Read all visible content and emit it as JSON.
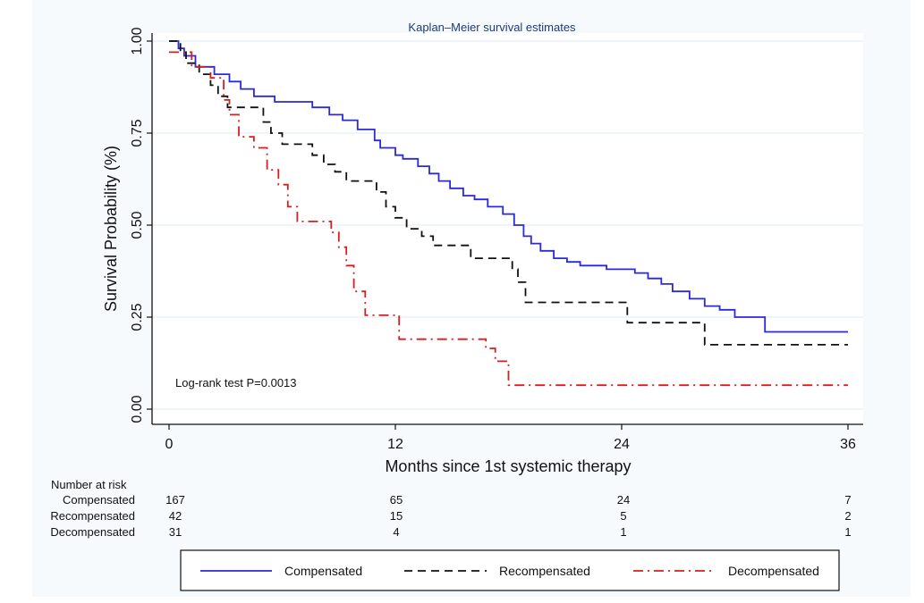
{
  "chart_data": {
    "type": "line",
    "subtype": "kaplan-meier",
    "title": "Kaplan–Meier survival estimates",
    "xlabel": "Months since 1st systemic therapy",
    "ylabel": "Survival Probability (%)",
    "xlim": [
      0,
      36
    ],
    "ylim": [
      0,
      1
    ],
    "xticks": [
      0,
      12,
      24,
      36
    ],
    "xtick_labels": [
      "0",
      "12",
      "24",
      "36"
    ],
    "yticks": [
      0,
      0.25,
      0.5,
      0.75,
      1.0
    ],
    "ytick_labels": [
      "0.00",
      "0.25",
      "0.50",
      "0.75",
      "1.00"
    ],
    "grid": "horizontal",
    "annotation": "Log-rank test P=0.0013",
    "legend_position": "bottom",
    "series": [
      {
        "name": "Compensated",
        "color": "#2a2ad8",
        "style": "solid",
        "steps": [
          [
            0,
            1.0
          ],
          [
            0.5,
            0.98
          ],
          [
            0.8,
            0.96
          ],
          [
            1.4,
            0.93
          ],
          [
            2.4,
            0.91
          ],
          [
            3.2,
            0.89
          ],
          [
            3.8,
            0.87
          ],
          [
            4.5,
            0.85
          ],
          [
            5.6,
            0.835
          ],
          [
            6.6,
            0.835
          ],
          [
            7.6,
            0.82
          ],
          [
            8.5,
            0.8
          ],
          [
            9.2,
            0.785
          ],
          [
            10,
            0.76
          ],
          [
            10.9,
            0.73
          ],
          [
            11.2,
            0.71
          ],
          [
            12,
            0.69
          ],
          [
            12.4,
            0.68
          ],
          [
            13.2,
            0.66
          ],
          [
            13.8,
            0.64
          ],
          [
            14.3,
            0.62
          ],
          [
            14.9,
            0.6
          ],
          [
            15.6,
            0.58
          ],
          [
            16.2,
            0.57
          ],
          [
            16.9,
            0.55
          ],
          [
            17.7,
            0.53
          ],
          [
            18.3,
            0.5
          ],
          [
            18.8,
            0.47
          ],
          [
            19.2,
            0.45
          ],
          [
            19.7,
            0.43
          ],
          [
            20.4,
            0.41
          ],
          [
            21.1,
            0.4
          ],
          [
            21.8,
            0.39
          ],
          [
            23.2,
            0.38
          ],
          [
            24.7,
            0.37
          ],
          [
            25.4,
            0.355
          ],
          [
            26.1,
            0.34
          ],
          [
            26.7,
            0.32
          ],
          [
            27.6,
            0.3
          ],
          [
            28.4,
            0.28
          ],
          [
            29.2,
            0.27
          ],
          [
            30.0,
            0.25
          ],
          [
            31.6,
            0.21
          ],
          [
            36,
            0.21
          ]
        ],
        "at_risk": [
          167,
          65,
          24,
          7
        ]
      },
      {
        "name": "Recompensated",
        "color": "#111111",
        "style": "dashed",
        "steps": [
          [
            0,
            1.0
          ],
          [
            0.6,
            0.97
          ],
          [
            0.9,
            0.94
          ],
          [
            1.6,
            0.91
          ],
          [
            2.2,
            0.88
          ],
          [
            2.6,
            0.85
          ],
          [
            3.1,
            0.82
          ],
          [
            5.0,
            0.78
          ],
          [
            5.4,
            0.75
          ],
          [
            6.0,
            0.72
          ],
          [
            7.6,
            0.69
          ],
          [
            8.2,
            0.665
          ],
          [
            8.8,
            0.645
          ],
          [
            9.4,
            0.62
          ],
          [
            11.0,
            0.59
          ],
          [
            11.5,
            0.55
          ],
          [
            12.0,
            0.52
          ],
          [
            12.6,
            0.49
          ],
          [
            13.4,
            0.47
          ],
          [
            14.0,
            0.445
          ],
          [
            15.4,
            0.445
          ],
          [
            16.0,
            0.41
          ],
          [
            18.2,
            0.38
          ],
          [
            18.5,
            0.345
          ],
          [
            18.9,
            0.29
          ],
          [
            24.0,
            0.29
          ],
          [
            24.3,
            0.235
          ],
          [
            26.8,
            0.235
          ],
          [
            28.4,
            0.175
          ],
          [
            36,
            0.175
          ]
        ],
        "at_risk": [
          42,
          15,
          5,
          2
        ]
      },
      {
        "name": "Decompensated",
        "color": "#d81e1e",
        "style": "dashdot",
        "steps": [
          [
            0,
            0.97
          ],
          [
            1.2,
            0.93
          ],
          [
            2.2,
            0.9
          ],
          [
            2.9,
            0.84
          ],
          [
            3.2,
            0.8
          ],
          [
            3.7,
            0.74
          ],
          [
            4.2,
            0.74
          ],
          [
            4.5,
            0.71
          ],
          [
            5.2,
            0.65
          ],
          [
            5.8,
            0.61
          ],
          [
            6.3,
            0.55
          ],
          [
            6.8,
            0.51
          ],
          [
            8.1,
            0.51
          ],
          [
            8.6,
            0.48
          ],
          [
            9.0,
            0.44
          ],
          [
            9.4,
            0.39
          ],
          [
            9.8,
            0.32
          ],
          [
            10.4,
            0.255
          ],
          [
            11.0,
            0.255
          ],
          [
            12.2,
            0.19
          ],
          [
            16.8,
            0.165
          ],
          [
            17.3,
            0.13
          ],
          [
            18.0,
            0.065
          ],
          [
            36,
            0.065
          ]
        ],
        "at_risk": [
          31,
          4,
          1,
          1
        ]
      }
    ],
    "risk_table": {
      "header": "Number at risk",
      "times": [
        0,
        12,
        24,
        36
      ],
      "rows": [
        {
          "label": "Compensated",
          "values": [
            "167",
            "65",
            "24",
            "7"
          ]
        },
        {
          "label": "Recompensated",
          "values": [
            "42",
            "15",
            "5",
            "2"
          ]
        },
        {
          "label": "Decompensated",
          "values": [
            "31",
            "4",
            "1",
            "1"
          ]
        }
      ]
    },
    "legend": [
      "Compensated",
      "Recompensated",
      "Decompensated"
    ]
  },
  "colors": {
    "axis": "#111111",
    "grid": "#dde8f2",
    "title": "#1a3c78",
    "panel": "#f7fafd"
  }
}
